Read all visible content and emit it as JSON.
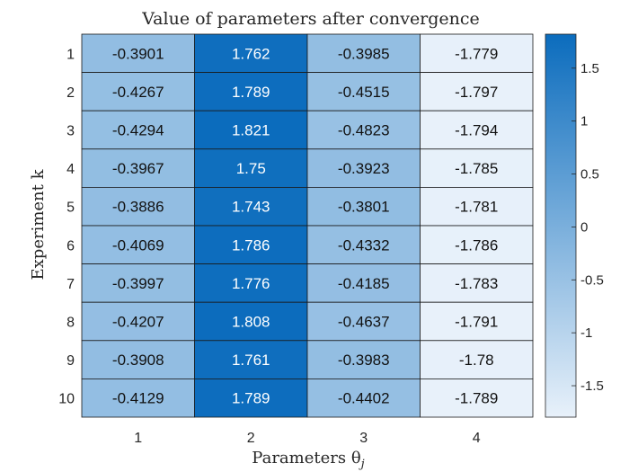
{
  "chart_data": {
    "type": "heatmap",
    "title": "Value of parameters after convergence",
    "xlabel": "Parameters θ",
    "xlabel_subscript": "j",
    "ylabel": "Experiment k",
    "x_categories": [
      "1",
      "2",
      "3",
      "4"
    ],
    "y_categories": [
      "1",
      "2",
      "3",
      "4",
      "5",
      "6",
      "7",
      "8",
      "9",
      "10"
    ],
    "values": [
      [
        -0.3901,
        1.762,
        -0.3985,
        -1.779
      ],
      [
        -0.4267,
        1.789,
        -0.4515,
        -1.797
      ],
      [
        -0.4294,
        1.821,
        -0.4823,
        -1.794
      ],
      [
        -0.3967,
        1.75,
        -0.3923,
        -1.785
      ],
      [
        -0.3886,
        1.743,
        -0.3801,
        -1.781
      ],
      [
        -0.4069,
        1.786,
        -0.4332,
        -1.786
      ],
      [
        -0.3997,
        1.776,
        -0.4185,
        -1.783
      ],
      [
        -0.4207,
        1.808,
        -0.4637,
        -1.791
      ],
      [
        -0.3908,
        1.761,
        -0.3983,
        -1.78
      ],
      [
        -0.4129,
        1.789,
        -0.4402,
        -1.789
      ]
    ],
    "cell_labels": [
      [
        "-0.3901",
        "1.762",
        "-0.3985",
        "-1.779"
      ],
      [
        "-0.4267",
        "1.789",
        "-0.4515",
        "-1.797"
      ],
      [
        "-0.4294",
        "1.821",
        "-0.4823",
        "-1.794"
      ],
      [
        "-0.3967",
        "1.75",
        "-0.3923",
        "-1.785"
      ],
      [
        "-0.3886",
        "1.743",
        "-0.3801",
        "-1.781"
      ],
      [
        "-0.4069",
        "1.786",
        "-0.4332",
        "-1.786"
      ],
      [
        "-0.3997",
        "1.776",
        "-0.4185",
        "-1.783"
      ],
      [
        "-0.4207",
        "1.808",
        "-0.4637",
        "-1.791"
      ],
      [
        "-0.3908",
        "1.761",
        "-0.3983",
        "-1.78"
      ],
      [
        "-0.4129",
        "1.789",
        "-0.4402",
        "-1.789"
      ]
    ],
    "colorbar": {
      "range": [
        -1.797,
        1.821
      ],
      "ticks": [
        -1.5,
        -1,
        -0.5,
        0,
        0.5,
        1,
        1.5
      ],
      "tick_labels": [
        "-1.5",
        "-1",
        "-0.5",
        "0",
        "0.5",
        "1",
        "1.5"
      ],
      "position": "right"
    },
    "colormap": {
      "low": "#e8f1fa",
      "high": "#0b6cbd"
    },
    "text_color_dark": "#111111",
    "text_color_light": "#ffffff",
    "grid": true
  }
}
